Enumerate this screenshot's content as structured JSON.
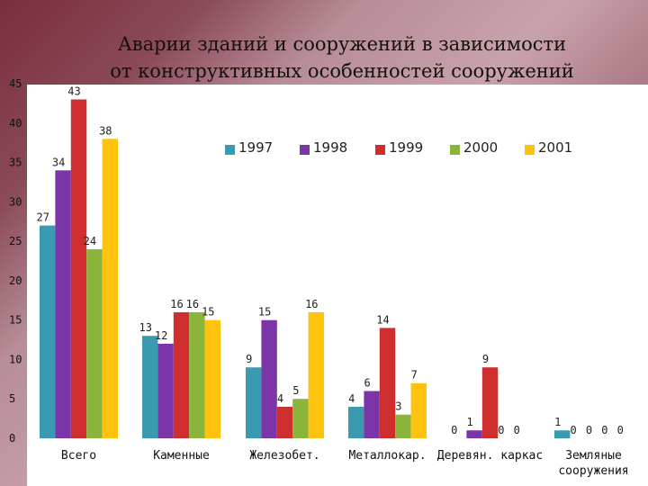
{
  "title_line1": "Аварии зданий и сооружений в зависимости",
  "title_line2": "от конструктивных особенностей сооружений",
  "chart_data": {
    "type": "bar",
    "categories": [
      [
        "Всего"
      ],
      [
        "Каменные"
      ],
      [
        "Железобет."
      ],
      [
        "Металлокар."
      ],
      [
        "Деревян. каркас"
      ],
      [
        "Земляные",
        "сооружения"
      ]
    ],
    "series": [
      {
        "name": "1997",
        "color": "#3a9ab0",
        "values": [
          27,
          13,
          9,
          4,
          0,
          1
        ]
      },
      {
        "name": "1998",
        "color": "#7b35a8",
        "values": [
          34,
          12,
          15,
          6,
          1,
          0
        ]
      },
      {
        "name": "1999",
        "color": "#cf2e2e",
        "values": [
          43,
          16,
          4,
          14,
          9,
          0
        ]
      },
      {
        "name": "2000",
        "color": "#8ab43a",
        "values": [
          24,
          16,
          5,
          3,
          0,
          0
        ]
      },
      {
        "name": "2001",
        "color": "#ffc20e",
        "values": [
          38,
          15,
          16,
          7,
          0,
          0
        ]
      }
    ],
    "yticks": [
      0,
      5,
      10,
      15,
      20,
      25,
      30,
      35,
      40,
      45
    ],
    "ylim": [
      0,
      45
    ],
    "grid": false,
    "legend": "top-right"
  }
}
